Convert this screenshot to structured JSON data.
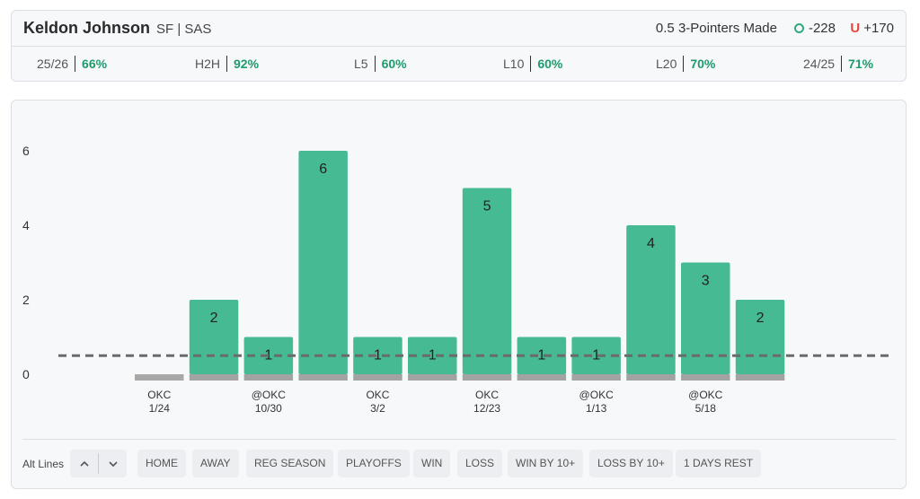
{
  "header": {
    "player_name": "Keldon Johnson",
    "player_meta": "SF | SAS",
    "prop_line": "0.5 3-Pointers Made",
    "over_odds": "-228",
    "under_label": "U",
    "under_odds": "+170",
    "stats": [
      {
        "label": "25/26",
        "value": "66%"
      },
      {
        "label": "H2H",
        "value": "92%"
      },
      {
        "label": "L5",
        "value": "60%"
      },
      {
        "label": "L10",
        "value": "60%"
      },
      {
        "label": "L20",
        "value": "70%"
      },
      {
        "label": "24/25",
        "value": "71%"
      }
    ]
  },
  "colors": {
    "hit_bar": "#46ba93",
    "miss_bar": "#a8a8a8",
    "base_bar": "#a3a3a3",
    "line": "#6b6b6b",
    "positive_text": "#1e9b6c",
    "under_icon": "#e5463b"
  },
  "chart_data": {
    "type": "bar",
    "y_ticks": [
      "0",
      "2",
      "4",
      "6"
    ],
    "ylim": [
      0,
      6
    ],
    "threshold": 0.5,
    "values": [
      0,
      2,
      1,
      6,
      1,
      1,
      5,
      1,
      1,
      4,
      3,
      2
    ],
    "value_labels": [
      "",
      "2",
      "1",
      "6",
      "1",
      "1",
      "5",
      "1",
      "1",
      "4",
      "3",
      "2"
    ],
    "x_labels": [
      {
        "team": "OKC",
        "date": "1/24"
      },
      {
        "team": "",
        "date": ""
      },
      {
        "team": "@OKC",
        "date": "10/30"
      },
      {
        "team": "",
        "date": ""
      },
      {
        "team": "OKC",
        "date": "3/2"
      },
      {
        "team": "",
        "date": ""
      },
      {
        "team": "OKC",
        "date": "12/23"
      },
      {
        "team": "",
        "date": ""
      },
      {
        "team": "@OKC",
        "date": "1/13"
      },
      {
        "team": "",
        "date": ""
      },
      {
        "team": "@OKC",
        "date": "5/18"
      },
      {
        "team": "",
        "date": ""
      }
    ]
  },
  "filters": {
    "alt_lines_label": "Alt Lines",
    "up_icon": "chevron-up-icon",
    "down_icon": "chevron-down-icon",
    "chips": [
      "HOME",
      "AWAY",
      "REG SEASON",
      "PLAYOFFS",
      "WIN",
      "LOSS",
      "WIN BY 10+",
      "LOSS BY 10+",
      "1 DAYS REST"
    ]
  }
}
